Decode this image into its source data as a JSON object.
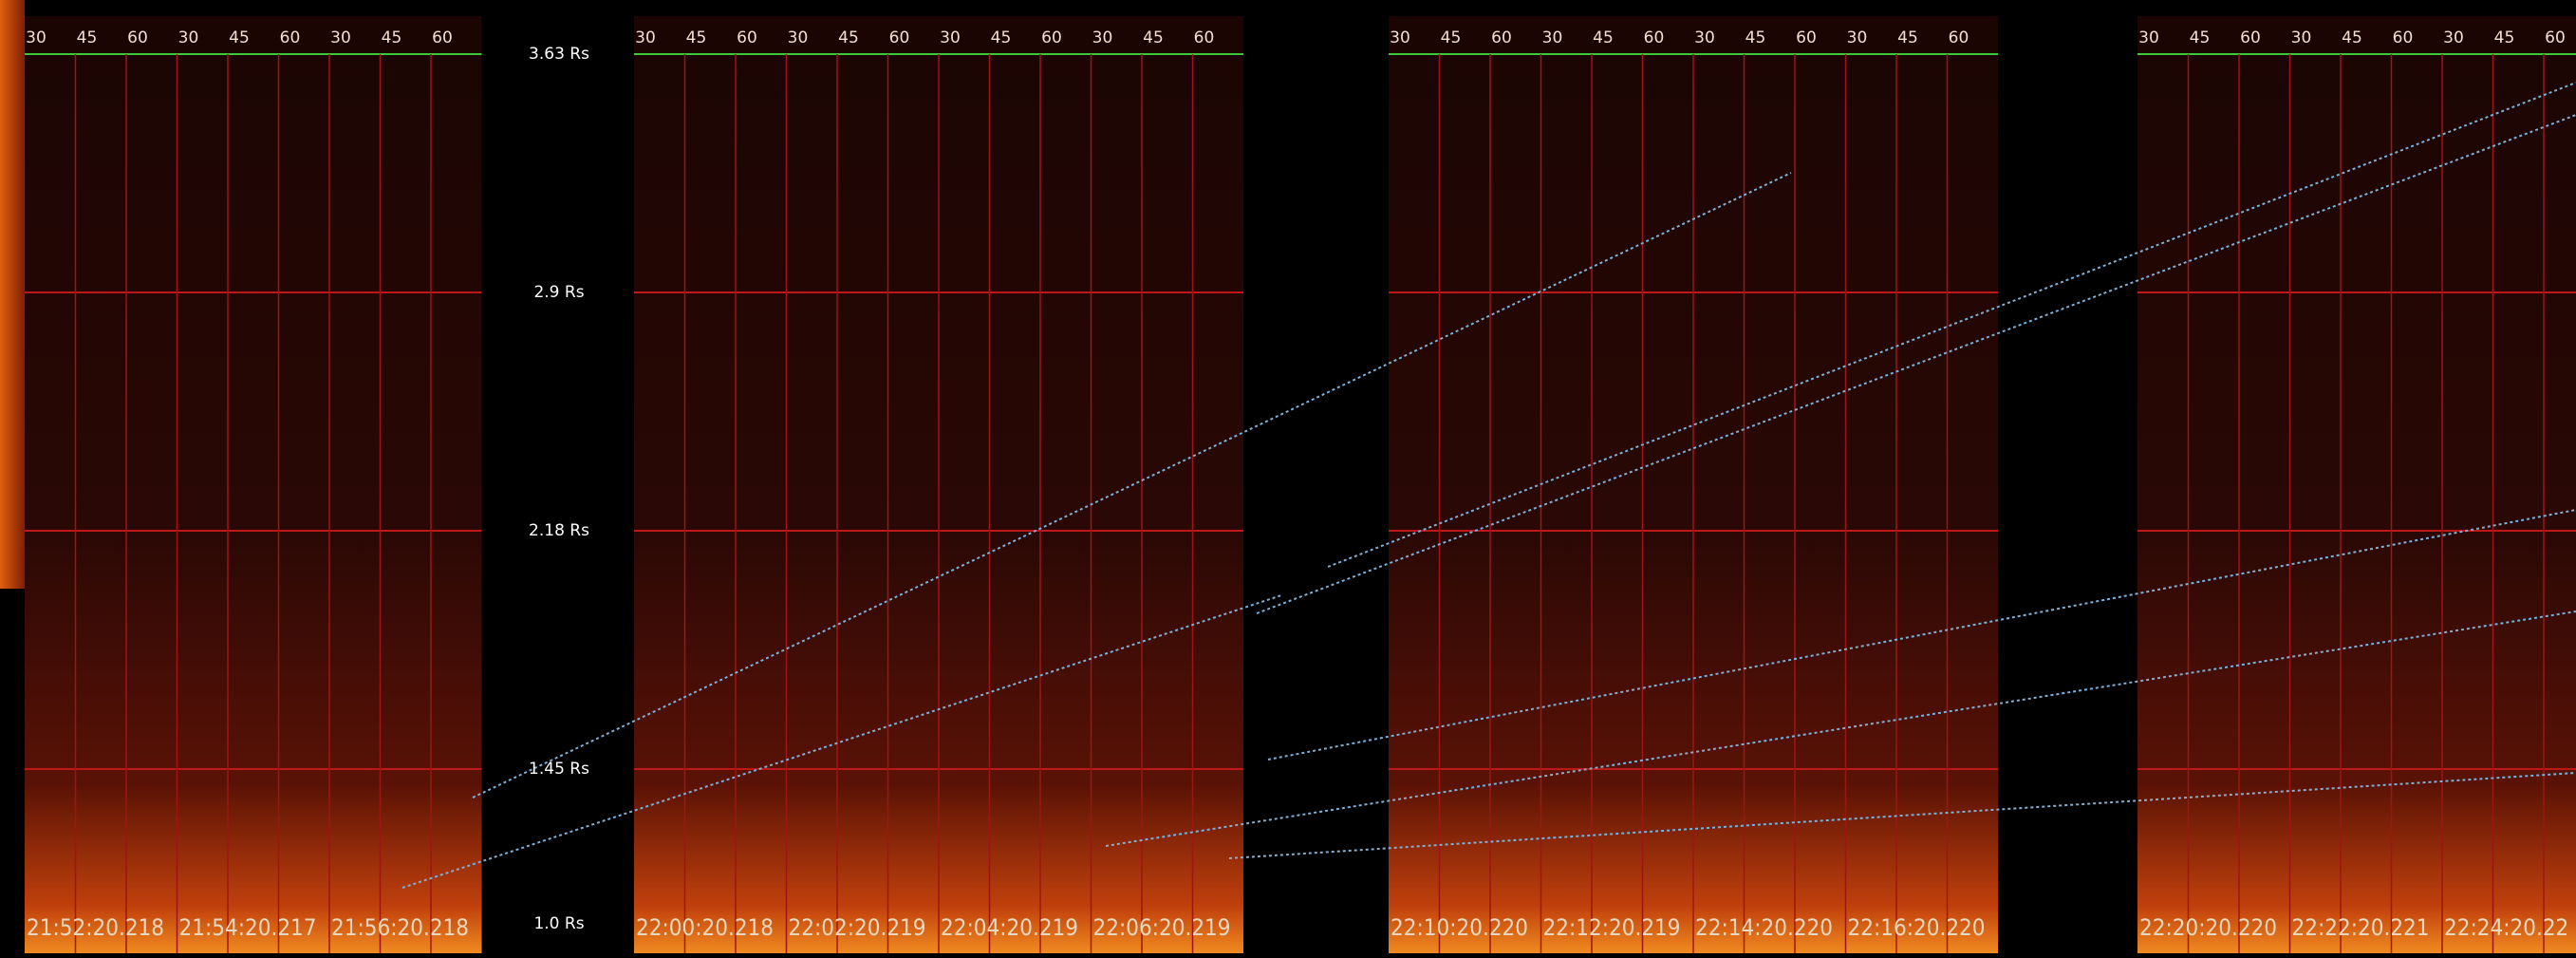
{
  "radial_labels": [
    "3.63 Rs",
    "2.9 Rs",
    "2.18 Rs",
    "1.45 Rs",
    "1.0 Rs"
  ],
  "group_ticks": [
    "30",
    "45",
    "60"
  ],
  "panels": [
    {
      "times": [
        "21:52:20.218",
        "21:54:20.217",
        "21:56:20.218"
      ]
    },
    {
      "times": [
        "22:00:20.218",
        "22:02:20.219",
        "22:04:20.219",
        "22:06:20.219"
      ]
    },
    {
      "times": [
        "22:10:20.220",
        "22:12:20.219",
        "22:14:20.220",
        "22:16:20.220"
      ]
    },
    {
      "times": [
        "22:20:20.220",
        "22:22:20.221",
        "22:24:20.22"
      ]
    }
  ]
}
